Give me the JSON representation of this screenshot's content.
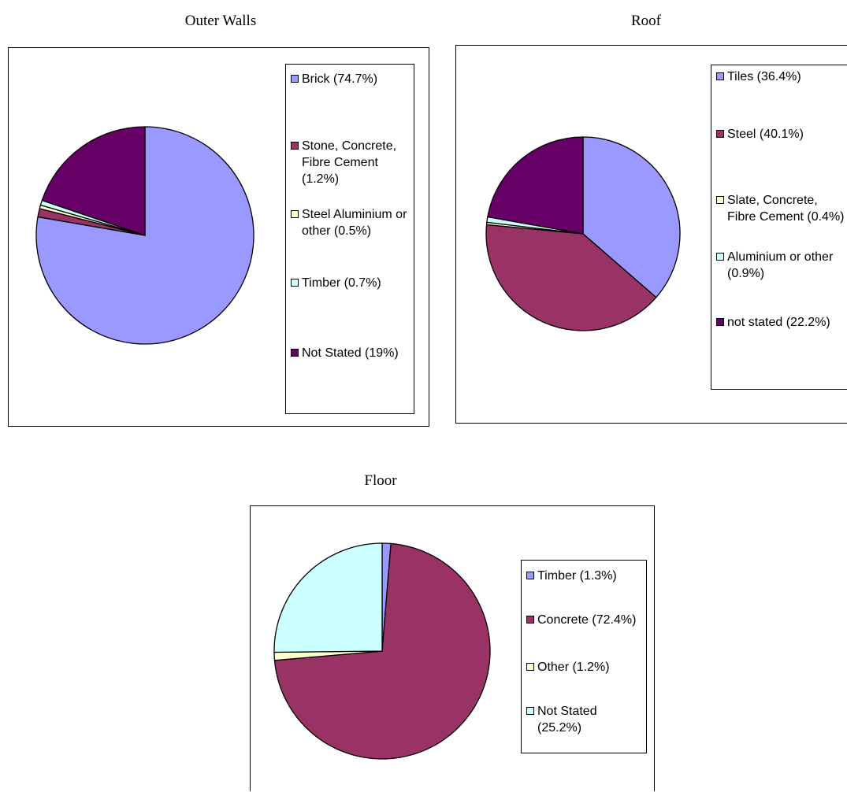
{
  "chart_data": [
    {
      "type": "pie",
      "title": "Outer Walls",
      "series": [
        {
          "label": "Brick (74.7%)",
          "value": 74.7,
          "color": "#9999ff"
        },
        {
          "label": "Stone, Concrete, Fibre Cement (1.2%)",
          "value": 1.2,
          "color": "#993366"
        },
        {
          "label": "Steel Aluminium or other (0.5%)",
          "value": 0.5,
          "color": "#ffffcc"
        },
        {
          "label": "Timber (0.7%)",
          "value": 0.7,
          "color": "#ccffff"
        },
        {
          "label": "Not Stated (19%)",
          "value": 19,
          "color": "#660066"
        }
      ],
      "legend_position": "right"
    },
    {
      "type": "pie",
      "title": "Roof",
      "series": [
        {
          "label": "Tiles (36.4%)",
          "value": 36.4,
          "color": "#9999ff"
        },
        {
          "label": "Steel (40.1%)",
          "value": 40.1,
          "color": "#993366"
        },
        {
          "label": "Slate, Concrete, Fibre Cement (0.4%)",
          "value": 0.4,
          "color": "#ffffcc"
        },
        {
          "label": "Aluminium or other (0.9%)",
          "value": 0.9,
          "color": "#ccffff"
        },
        {
          "label": "not stated (22.2%)",
          "value": 22.2,
          "color": "#660066"
        }
      ],
      "legend_position": "right"
    },
    {
      "type": "pie",
      "title": "Floor",
      "series": [
        {
          "label": "Timber (1.3%)",
          "value": 1.3,
          "color": "#9999ff"
        },
        {
          "label": "Concrete (72.4%)",
          "value": 72.4,
          "color": "#993366"
        },
        {
          "label": "Other (1.2%)",
          "value": 1.2,
          "color": "#ffffcc"
        },
        {
          "label": "Not Stated (25.2%)",
          "value": 25.2,
          "color": "#ccffff"
        }
      ],
      "legend_position": "right"
    }
  ]
}
